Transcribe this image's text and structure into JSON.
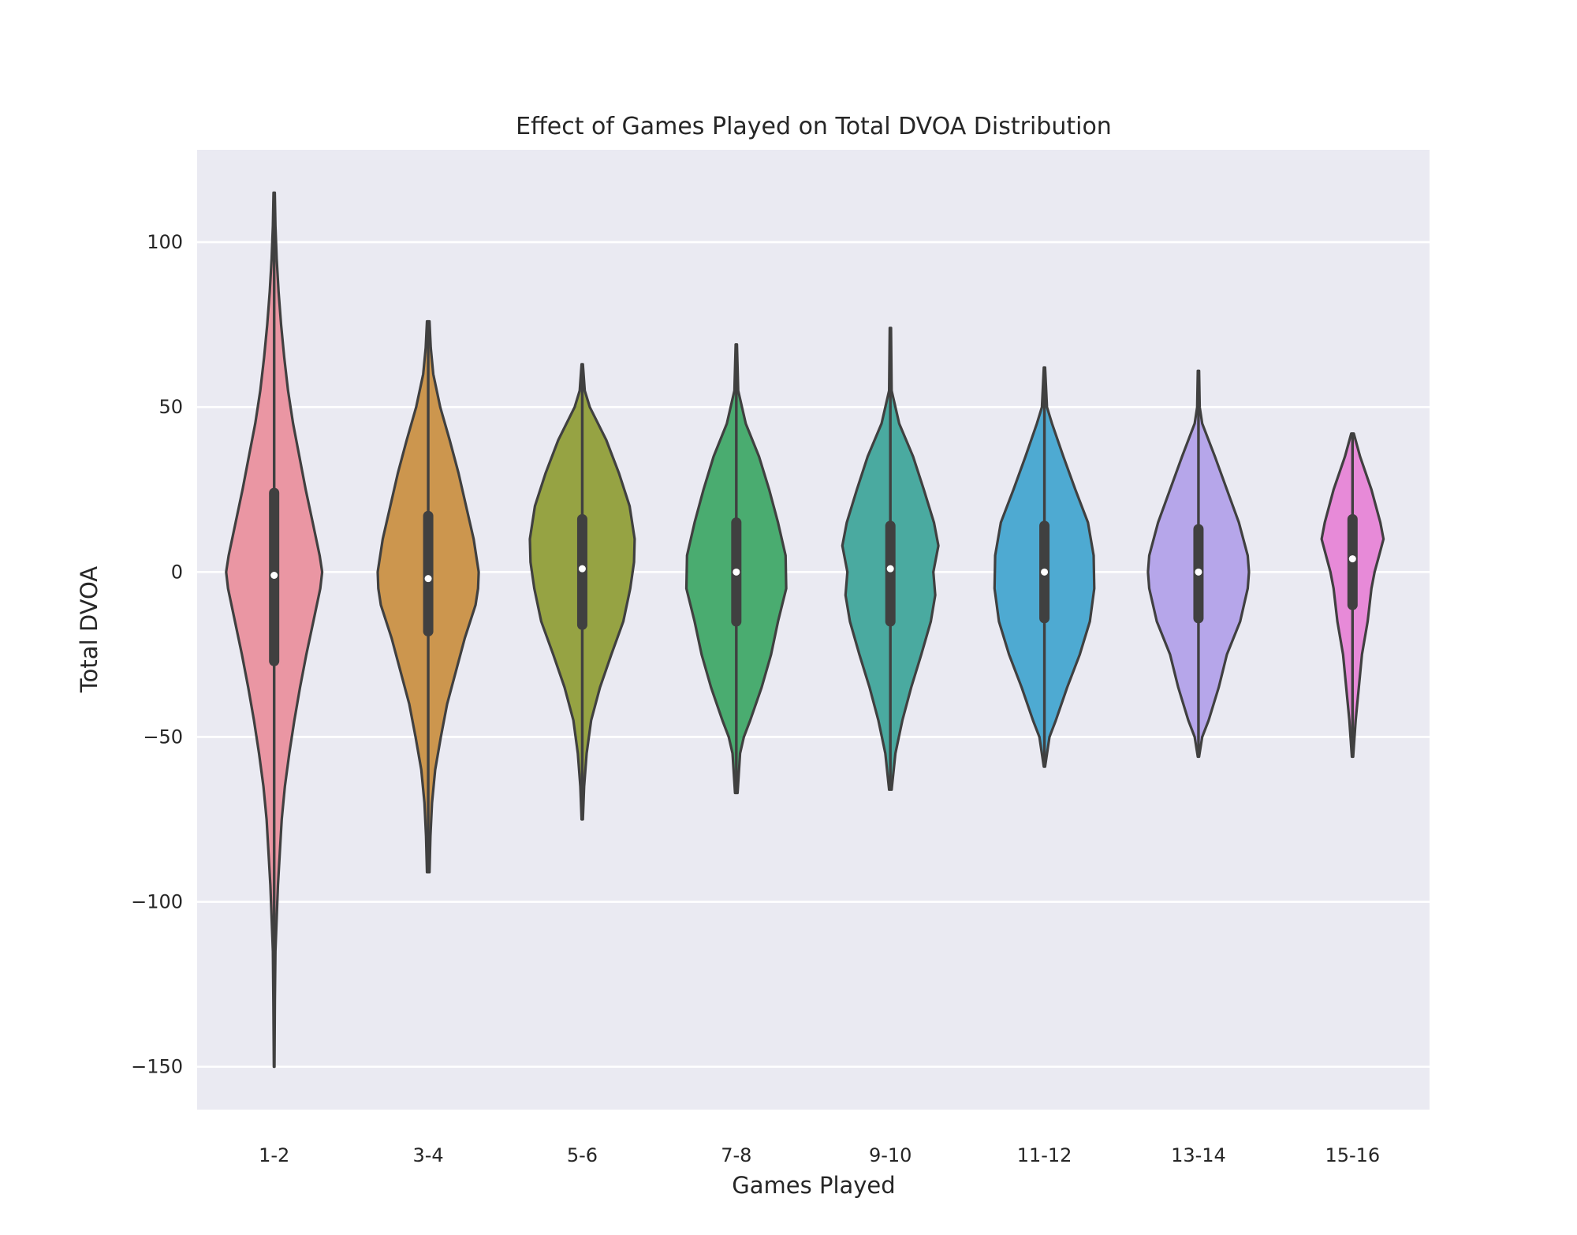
{
  "chart_data": {
    "type": "violin",
    "title": "Effect of Games Played on Total DVOA Distribution",
    "xlabel": "Games Played",
    "ylabel": "Total DVOA",
    "ylim": [
      -163,
      128
    ],
    "y_ticks": [
      100,
      50,
      0,
      -50,
      -100,
      -150
    ],
    "y_tick_labels": [
      "100",
      "50",
      "0",
      "−50",
      "−100",
      "−150"
    ],
    "grid": true,
    "legend": "none",
    "background_color": "#eaeaf2",
    "outline_color": "#404040",
    "categories": [
      "1-2",
      "3-4",
      "5-6",
      "7-8",
      "9-10",
      "11-12",
      "13-14",
      "15-16"
    ],
    "colors": [
      "#ea96a3",
      "#cc964e",
      "#96a343",
      "#4aac70",
      "#4aaaa0",
      "#4eaad2",
      "#b6a6ea",
      "#e78ad8"
    ],
    "violins": [
      {
        "category": "1-2",
        "median": -1,
        "q1": -27,
        "q3": 24,
        "min": -150,
        "max": 115,
        "profile": [
          [
            115,
            0.01
          ],
          [
            105,
            0.02
          ],
          [
            95,
            0.04
          ],
          [
            85,
            0.07
          ],
          [
            75,
            0.11
          ],
          [
            65,
            0.16
          ],
          [
            55,
            0.22
          ],
          [
            45,
            0.3
          ],
          [
            35,
            0.4
          ],
          [
            25,
            0.5
          ],
          [
            15,
            0.61
          ],
          [
            5,
            0.72
          ],
          [
            0,
            0.76
          ],
          [
            -5,
            0.73
          ],
          [
            -15,
            0.62
          ],
          [
            -25,
            0.51
          ],
          [
            -35,
            0.41
          ],
          [
            -45,
            0.32
          ],
          [
            -55,
            0.24
          ],
          [
            -65,
            0.17
          ],
          [
            -75,
            0.12
          ],
          [
            -85,
            0.09
          ],
          [
            -95,
            0.06
          ],
          [
            -105,
            0.04
          ],
          [
            -115,
            0.02
          ],
          [
            -130,
            0.012
          ],
          [
            -150,
            0.005
          ]
        ]
      },
      {
        "category": "3-4",
        "median": -2,
        "q1": -18,
        "q3": 17,
        "min": -91,
        "max": 76,
        "profile": [
          [
            76,
            0.02
          ],
          [
            68,
            0.04
          ],
          [
            60,
            0.08
          ],
          [
            50,
            0.19
          ],
          [
            40,
            0.34
          ],
          [
            30,
            0.48
          ],
          [
            20,
            0.6
          ],
          [
            10,
            0.72
          ],
          [
            0,
            0.8
          ],
          [
            -5,
            0.79
          ],
          [
            -10,
            0.75
          ],
          [
            -20,
            0.58
          ],
          [
            -30,
            0.44
          ],
          [
            -40,
            0.3
          ],
          [
            -50,
            0.2
          ],
          [
            -60,
            0.11
          ],
          [
            -70,
            0.06
          ],
          [
            -80,
            0.035
          ],
          [
            -91,
            0.02
          ]
        ]
      },
      {
        "category": "5-6",
        "median": 1,
        "q1": -16,
        "q3": 16,
        "min": -75,
        "max": 63,
        "profile": [
          [
            63,
            0.01
          ],
          [
            55,
            0.04
          ],
          [
            50,
            0.12
          ],
          [
            40,
            0.38
          ],
          [
            30,
            0.58
          ],
          [
            20,
            0.75
          ],
          [
            10,
            0.83
          ],
          [
            3,
            0.82
          ],
          [
            -5,
            0.76
          ],
          [
            -15,
            0.65
          ],
          [
            -25,
            0.46
          ],
          [
            -35,
            0.28
          ],
          [
            -45,
            0.14
          ],
          [
            -55,
            0.07
          ],
          [
            -65,
            0.03
          ],
          [
            -75,
            0.01
          ]
        ]
      },
      {
        "category": "7-8",
        "median": 0,
        "q1": -15,
        "q3": 15,
        "min": -67,
        "max": 69,
        "profile": [
          [
            69,
            0.01
          ],
          [
            55,
            0.03
          ],
          [
            45,
            0.15
          ],
          [
            35,
            0.36
          ],
          [
            25,
            0.52
          ],
          [
            15,
            0.66
          ],
          [
            5,
            0.78
          ],
          [
            -5,
            0.79
          ],
          [
            -15,
            0.66
          ],
          [
            -25,
            0.55
          ],
          [
            -35,
            0.4
          ],
          [
            -45,
            0.22
          ],
          [
            -50,
            0.12
          ],
          [
            -55,
            0.06
          ],
          [
            -67,
            0.02
          ]
        ]
      },
      {
        "category": "9-10",
        "median": 1,
        "q1": -15,
        "q3": 14,
        "min": -66,
        "max": 74,
        "profile": [
          [
            74,
            0.01
          ],
          [
            55,
            0.02
          ],
          [
            45,
            0.14
          ],
          [
            35,
            0.36
          ],
          [
            25,
            0.53
          ],
          [
            15,
            0.69
          ],
          [
            8,
            0.76
          ],
          [
            0,
            0.68
          ],
          [
            -7,
            0.71
          ],
          [
            -15,
            0.64
          ],
          [
            -25,
            0.49
          ],
          [
            -35,
            0.33
          ],
          [
            -45,
            0.19
          ],
          [
            -55,
            0.08
          ],
          [
            -66,
            0.02
          ]
        ]
      },
      {
        "category": "11-12",
        "median": 0,
        "q1": -14,
        "q3": 14,
        "min": -59,
        "max": 62,
        "profile": [
          [
            62,
            0.01
          ],
          [
            50,
            0.04
          ],
          [
            45,
            0.12
          ],
          [
            35,
            0.3
          ],
          [
            25,
            0.49
          ],
          [
            15,
            0.69
          ],
          [
            5,
            0.78
          ],
          [
            -5,
            0.79
          ],
          [
            -15,
            0.72
          ],
          [
            -25,
            0.56
          ],
          [
            -35,
            0.36
          ],
          [
            -45,
            0.18
          ],
          [
            -50,
            0.08
          ],
          [
            -59,
            0.01
          ]
        ]
      },
      {
        "category": "13-14",
        "median": 0,
        "q1": -14,
        "q3": 13,
        "min": -56,
        "max": 61,
        "profile": [
          [
            61,
            0.01
          ],
          [
            50,
            0.02
          ],
          [
            45,
            0.06
          ],
          [
            35,
            0.26
          ],
          [
            25,
            0.45
          ],
          [
            15,
            0.64
          ],
          [
            5,
            0.78
          ],
          [
            0,
            0.8
          ],
          [
            -5,
            0.78
          ],
          [
            -15,
            0.66
          ],
          [
            -25,
            0.45
          ],
          [
            -35,
            0.32
          ],
          [
            -45,
            0.16
          ],
          [
            -50,
            0.06
          ],
          [
            -56,
            0.01
          ]
        ]
      },
      {
        "category": "15-16",
        "median": 4,
        "q1": -10,
        "q3": 16,
        "min": -56,
        "max": 42,
        "profile": [
          [
            42,
            0.02
          ],
          [
            35,
            0.12
          ],
          [
            25,
            0.3
          ],
          [
            15,
            0.44
          ],
          [
            10,
            0.49
          ],
          [
            5,
            0.42
          ],
          [
            0,
            0.35
          ],
          [
            -5,
            0.3
          ],
          [
            -15,
            0.24
          ],
          [
            -25,
            0.15
          ],
          [
            -35,
            0.1
          ],
          [
            -45,
            0.05
          ],
          [
            -56,
            0.01
          ]
        ]
      }
    ]
  }
}
